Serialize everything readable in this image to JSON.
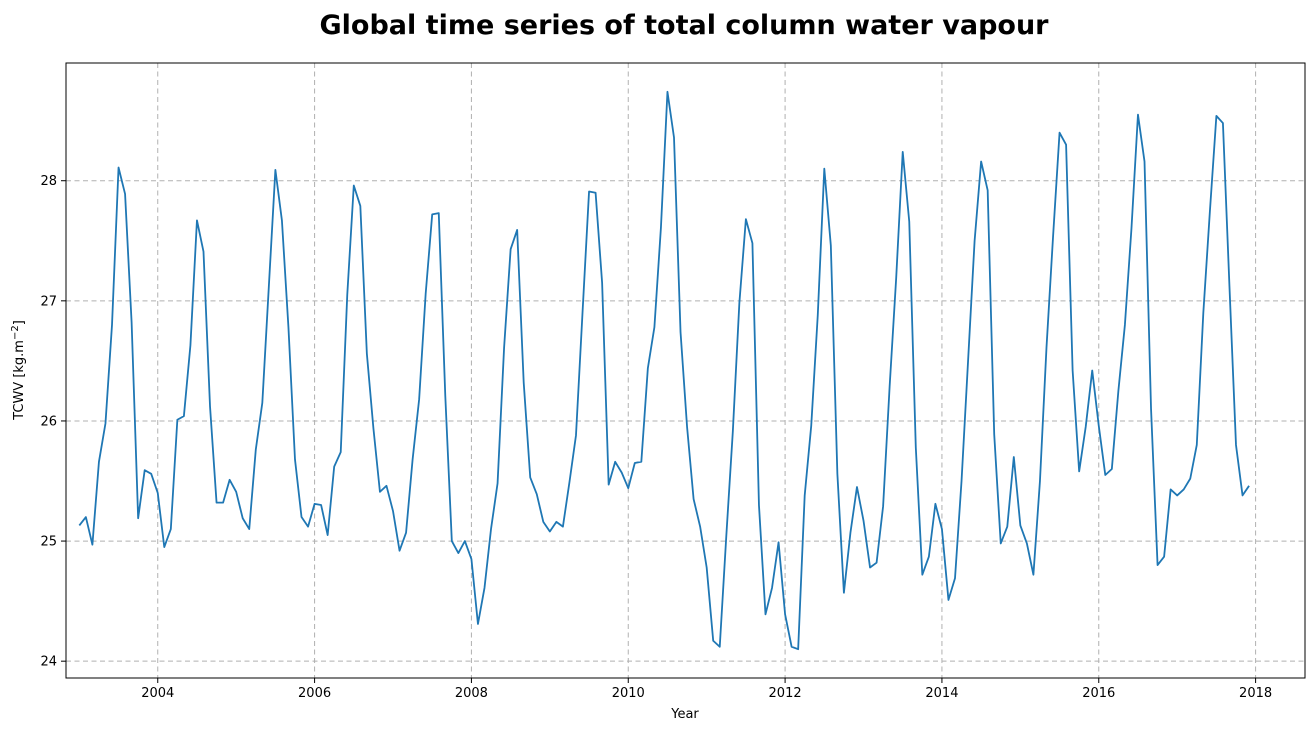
{
  "chart_data": {
    "type": "line",
    "title": "Global time series of total column water vapour",
    "xlabel": "Year",
    "ylabel_main": "TCWV [kg.m",
    "ylabel_sup": "−2",
    "ylabel_end": "]",
    "xlim": [
      2002.83,
      2018.63
    ],
    "ylim": [
      23.86,
      28.98
    ],
    "x_ticks": [
      2004,
      2006,
      2008,
      2010,
      2012,
      2014,
      2016,
      2018
    ],
    "x_tick_labels": [
      "2004",
      "2006",
      "2008",
      "2010",
      "2012",
      "2014",
      "2016",
      "2018"
    ],
    "y_ticks": [
      24,
      25,
      26,
      27,
      28
    ],
    "y_tick_labels": [
      "24",
      "25",
      "26",
      "27",
      "28"
    ],
    "grid": true,
    "series": [
      {
        "name": "TCWV",
        "color": "#1f77b4",
        "start_year": 2003,
        "step_months": 1,
        "values": [
          25.13,
          25.2,
          24.97,
          25.66,
          25.98,
          26.8,
          28.11,
          27.89,
          26.82,
          25.19,
          25.59,
          25.56,
          25.4,
          24.95,
          25.1,
          26.01,
          26.04,
          26.63,
          27.67,
          27.41,
          26.12,
          25.32,
          25.32,
          25.51,
          25.41,
          25.19,
          25.1,
          25.76,
          26.15,
          27.12,
          28.09,
          27.67,
          26.78,
          25.68,
          25.2,
          25.12,
          25.31,
          25.3,
          25.05,
          25.62,
          25.74,
          27.05,
          27.96,
          27.79,
          26.56,
          25.94,
          25.41,
          25.46,
          25.25,
          24.92,
          25.07,
          25.68,
          26.18,
          27.06,
          27.72,
          27.73,
          26.21,
          25.0,
          24.9,
          25.0,
          24.85,
          24.31,
          24.61,
          25.1,
          25.48,
          26.61,
          27.43,
          27.59,
          26.32,
          25.53,
          25.39,
          25.16,
          25.08,
          25.16,
          25.12,
          25.49,
          25.88,
          26.9,
          27.91,
          27.9,
          27.15,
          25.47,
          25.66,
          25.57,
          25.44,
          25.65,
          25.66,
          26.44,
          26.78,
          27.61,
          28.74,
          28.36,
          26.74,
          25.95,
          25.35,
          25.12,
          24.78,
          24.17,
          24.12,
          25.04,
          25.91,
          26.98,
          27.68,
          27.48,
          25.3,
          24.39,
          24.61,
          24.99,
          24.39,
          24.12,
          24.1,
          25.38,
          25.96,
          26.88,
          28.1,
          27.46,
          25.56,
          24.57,
          25.07,
          25.45,
          25.17,
          24.78,
          24.82,
          25.29,
          26.29,
          27.19,
          28.24,
          27.66,
          25.78,
          24.72,
          24.87,
          25.31,
          25.1,
          24.51,
          24.69,
          25.5,
          26.5,
          27.5,
          28.16,
          27.92,
          25.89,
          24.98,
          25.12,
          25.7,
          25.13,
          24.98,
          24.72,
          25.5,
          26.61,
          27.53,
          28.4,
          28.3,
          26.42,
          25.58,
          25.95,
          26.42,
          25.96,
          25.55,
          25.6,
          26.25,
          26.8,
          27.6,
          28.55,
          28.16,
          26.1,
          24.8,
          24.87,
          25.43,
          25.38,
          25.43,
          25.52,
          25.8,
          26.9,
          27.74,
          28.54,
          28.48,
          27.12,
          25.8,
          25.38,
          25.46
        ]
      }
    ]
  }
}
